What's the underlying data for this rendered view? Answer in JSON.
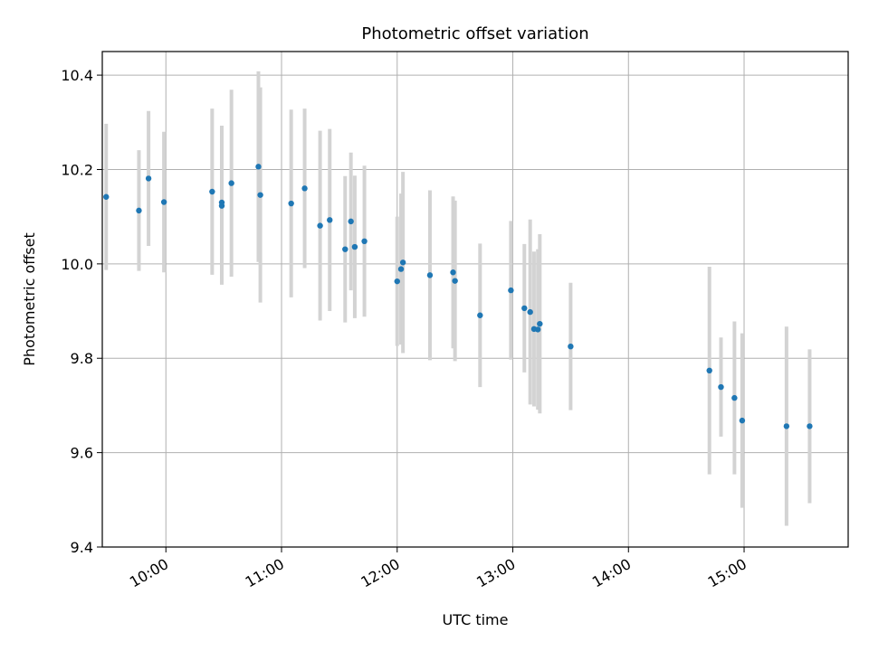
{
  "chart_data": {
    "type": "scatter",
    "title": "Photometric offset variation",
    "xlabel": "UTC time",
    "ylabel": "Photometric offset",
    "x_is_time": true,
    "xlim": [
      "09:27",
      "15:54"
    ],
    "ylim": [
      9.4,
      10.45
    ],
    "xticks": [
      "10:00",
      "11:00",
      "12:00",
      "13:00",
      "14:00",
      "15:00"
    ],
    "yticks": [
      9.4,
      9.6,
      9.8,
      10.0,
      10.2,
      10.4
    ],
    "ytick_labels": [
      "9.4",
      "9.6",
      "9.8",
      "10.0",
      "10.2",
      "10.4"
    ],
    "grid": true,
    "colors": {
      "point": "#1f77b4",
      "errorbar": "#d3d3d3",
      "grid": "#b0b0b0"
    },
    "points": [
      {
        "x": "09:29",
        "y": 10.142,
        "err": 0.155
      },
      {
        "x": "09:46",
        "y": 10.113,
        "err": 0.128
      },
      {
        "x": "09:51",
        "y": 10.181,
        "err": 0.143
      },
      {
        "x": "09:59",
        "y": 10.131,
        "err": 0.149
      },
      {
        "x": "10:24",
        "y": 10.153,
        "err": 0.176
      },
      {
        "x": "10:29",
        "y": 10.13,
        "err": 0.163
      },
      {
        "x": "10:29",
        "y": 10.123,
        "err": 0.167
      },
      {
        "x": "10:34",
        "y": 10.171,
        "err": 0.198
      },
      {
        "x": "10:48",
        "y": 10.206,
        "err": 0.202
      },
      {
        "x": "10:49",
        "y": 10.146,
        "err": 0.228
      },
      {
        "x": "11:05",
        "y": 10.128,
        "err": 0.199
      },
      {
        "x": "11:12",
        "y": 10.16,
        "err": 0.169
      },
      {
        "x": "11:20",
        "y": 10.081,
        "err": 0.201
      },
      {
        "x": "11:25",
        "y": 10.093,
        "err": 0.193
      },
      {
        "x": "11:33",
        "y": 10.031,
        "err": 0.155
      },
      {
        "x": "11:36",
        "y": 10.09,
        "err": 0.146
      },
      {
        "x": "11:38",
        "y": 10.036,
        "err": 0.151
      },
      {
        "x": "11:43",
        "y": 10.048,
        "err": 0.16
      },
      {
        "x": "12:00",
        "y": 9.963,
        "err": 0.137
      },
      {
        "x": "12:02",
        "y": 9.989,
        "err": 0.16
      },
      {
        "x": "12:03",
        "y": 10.003,
        "err": 0.192
      },
      {
        "x": "12:17",
        "y": 9.976,
        "err": 0.18
      },
      {
        "x": "12:29",
        "y": 9.982,
        "err": 0.161
      },
      {
        "x": "12:30",
        "y": 9.964,
        "err": 0.17
      },
      {
        "x": "12:43",
        "y": 9.891,
        "err": 0.152
      },
      {
        "x": "12:59",
        "y": 9.944,
        "err": 0.147
      },
      {
        "x": "13:06",
        "y": 9.906,
        "err": 0.136
      },
      {
        "x": "13:09",
        "y": 9.898,
        "err": 0.196
      },
      {
        "x": "13:11",
        "y": 9.862,
        "err": 0.164
      },
      {
        "x": "13:13",
        "y": 9.861,
        "err": 0.17
      },
      {
        "x": "13:14",
        "y": 9.873,
        "err": 0.19
      },
      {
        "x": "13:30",
        "y": 9.825,
        "err": 0.135
      },
      {
        "x": "14:42",
        "y": 9.774,
        "err": 0.22
      },
      {
        "x": "14:48",
        "y": 9.739,
        "err": 0.105
      },
      {
        "x": "14:55",
        "y": 9.716,
        "err": 0.162
      },
      {
        "x": "14:59",
        "y": 9.668,
        "err": 0.185
      },
      {
        "x": "15:22",
        "y": 9.656,
        "err": 0.211
      },
      {
        "x": "15:34",
        "y": 9.656,
        "err": 0.163
      }
    ]
  }
}
